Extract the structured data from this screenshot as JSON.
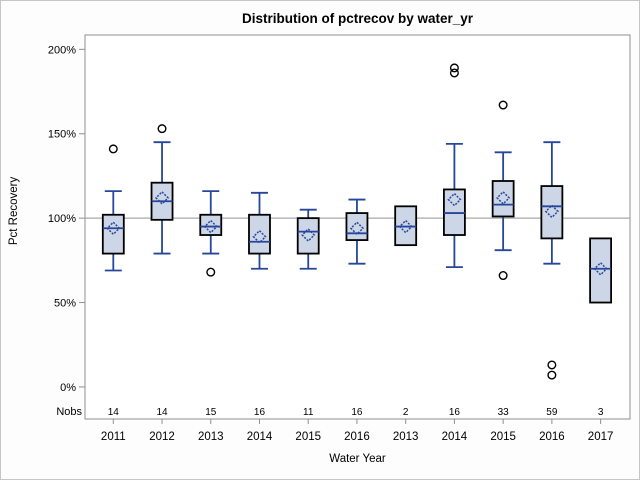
{
  "figure": {
    "background": "#fdfdfd",
    "border_color": "#c6c6c6"
  },
  "chart_data": {
    "type": "boxplot",
    "title": "Distribution of pctrecov by water_yr",
    "xlabel": "Water Year",
    "ylabel": "Pct Recovery",
    "nobs_label": "Nobs",
    "y_tick_pcts": [
      0,
      50,
      100,
      150,
      200
    ],
    "y_tick_labels": [
      "0%",
      "50%",
      "100%",
      "150%",
      "200%"
    ],
    "ylim_pct": [
      -19,
      208.5
    ],
    "reference_line_pct": 100,
    "grid": false,
    "legend": "none",
    "categories": [
      {
        "year": "2011",
        "nobs": "14",
        "low": 69,
        "q1": 79,
        "median": 94,
        "mean": 94,
        "q3": 102,
        "high": 116,
        "outliers": [
          141
        ]
      },
      {
        "year": "2012",
        "nobs": "14",
        "low": 79,
        "q1": 99,
        "median": 110,
        "mean": 112,
        "q3": 121,
        "high": 145,
        "outliers": [
          153
        ]
      },
      {
        "year": "2013",
        "nobs": "15",
        "low": 79,
        "q1": 90,
        "median": 95,
        "mean": 95,
        "q3": 102,
        "high": 116,
        "outliers": [
          68
        ]
      },
      {
        "year": "2014",
        "nobs": "16",
        "low": 70,
        "q1": 79,
        "median": 86,
        "mean": 89,
        "q3": 102,
        "high": 115,
        "outliers": []
      },
      {
        "year": "2015",
        "nobs": "11",
        "low": 70,
        "q1": 79,
        "median": 92,
        "mean": 90,
        "q3": 100,
        "high": 105,
        "outliers": []
      },
      {
        "year": "2016",
        "nobs": "16",
        "low": 73,
        "q1": 87,
        "median": 91,
        "mean": 94,
        "q3": 103,
        "high": 111,
        "outliers": []
      },
      {
        "year": "2013",
        "nobs": "2",
        "low": null,
        "q1": 84,
        "median": 95,
        "mean": 95,
        "q3": 107,
        "high": null,
        "outliers": []
      },
      {
        "year": "2014",
        "nobs": "16",
        "low": 71,
        "q1": 90,
        "median": 103,
        "mean": 111,
        "q3": 117,
        "high": 144,
        "outliers": [
          186,
          189
        ]
      },
      {
        "year": "2015",
        "nobs": "33",
        "low": 81,
        "q1": 101,
        "median": 108,
        "mean": 112,
        "q3": 122,
        "high": 139,
        "outliers": [
          66,
          167
        ]
      },
      {
        "year": "2016",
        "nobs": "59",
        "low": 73,
        "q1": 88,
        "median": 107,
        "mean": 104,
        "q3": 119,
        "high": 145,
        "outliers": [
          7,
          13
        ]
      },
      {
        "year": "2017",
        "nobs": "3",
        "low": null,
        "q1": 50,
        "median": 70,
        "mean": 70,
        "q3": 88,
        "high": null,
        "outliers": []
      }
    ],
    "colors": {
      "box_fill": "#cdd6e6",
      "box_border": "#000000",
      "whisker_median_mean": "#26469c",
      "outlier_stroke": "#000000",
      "reference_line": "#a9a9a9",
      "frame": "#909090",
      "text": "#000000"
    }
  }
}
